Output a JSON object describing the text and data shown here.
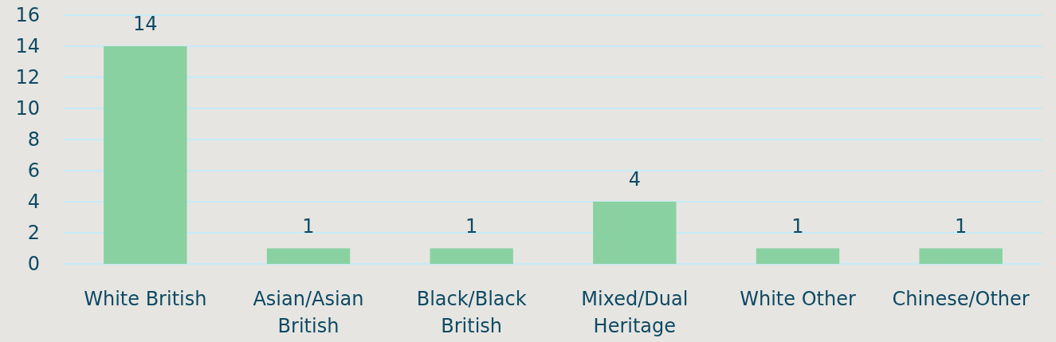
{
  "chart_data": {
    "type": "bar",
    "categories": [
      "White British",
      "Asian/Asian British",
      "Black/Black British",
      "Mixed/Dual Heritage",
      "White Other",
      "Chinese/Other"
    ],
    "values": [
      14,
      1,
      1,
      4,
      1,
      1
    ],
    "color": "#8ad1a2",
    "ylim": [
      0,
      16
    ],
    "yticks": [
      0,
      2,
      4,
      6,
      8,
      10,
      12,
      14,
      16
    ],
    "grid": "y",
    "data_labels": true
  }
}
